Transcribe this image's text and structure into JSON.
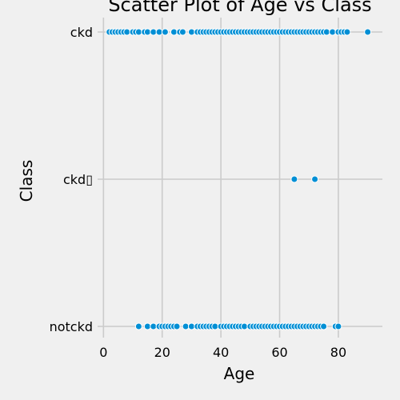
{
  "colors": {
    "background": "#f0f0f0",
    "grid": "#cbcbcb",
    "point": "#008fd5"
  },
  "chart_data": {
    "type": "scatter",
    "title": "Scatter Plot of Age vs Class",
    "xlabel": "Age",
    "ylabel": "Class",
    "xlim": [
      -2,
      95
    ],
    "xticks": [
      0,
      20,
      40,
      60,
      80
    ],
    "categories": [
      "ckd",
      "ckd\t",
      "notckd"
    ],
    "category_labels": [
      "ckd",
      "ckd▯",
      "notckd"
    ],
    "grid": true,
    "series": [
      {
        "category": "ckd",
        "x": [
          2,
          3,
          4,
          5,
          6,
          7,
          8,
          10,
          11,
          12,
          14,
          15,
          17,
          19,
          21,
          24,
          26,
          27,
          30,
          32,
          33,
          34,
          35,
          36,
          37,
          38,
          39,
          40,
          41,
          42,
          43,
          44,
          45,
          46,
          47,
          48,
          49,
          50,
          51,
          52,
          53,
          54,
          55,
          56,
          57,
          58,
          59,
          60,
          61,
          62,
          63,
          64,
          65,
          66,
          67,
          68,
          69,
          70,
          71,
          72,
          73,
          74,
          75,
          76,
          78,
          80,
          81,
          82,
          83,
          90
        ]
      },
      {
        "category": "ckd\t",
        "x": [
          65,
          72
        ]
      },
      {
        "category": "notckd",
        "x": [
          12,
          15,
          17,
          19,
          20,
          21,
          22,
          23,
          24,
          25,
          28,
          30,
          32,
          33,
          34,
          35,
          36,
          37,
          38,
          40,
          41,
          42,
          43,
          44,
          45,
          46,
          47,
          48,
          50,
          51,
          52,
          53,
          54,
          55,
          56,
          57,
          58,
          59,
          60,
          61,
          62,
          63,
          64,
          65,
          66,
          67,
          68,
          69,
          70,
          71,
          72,
          73,
          74,
          75,
          79,
          80
        ]
      }
    ]
  }
}
